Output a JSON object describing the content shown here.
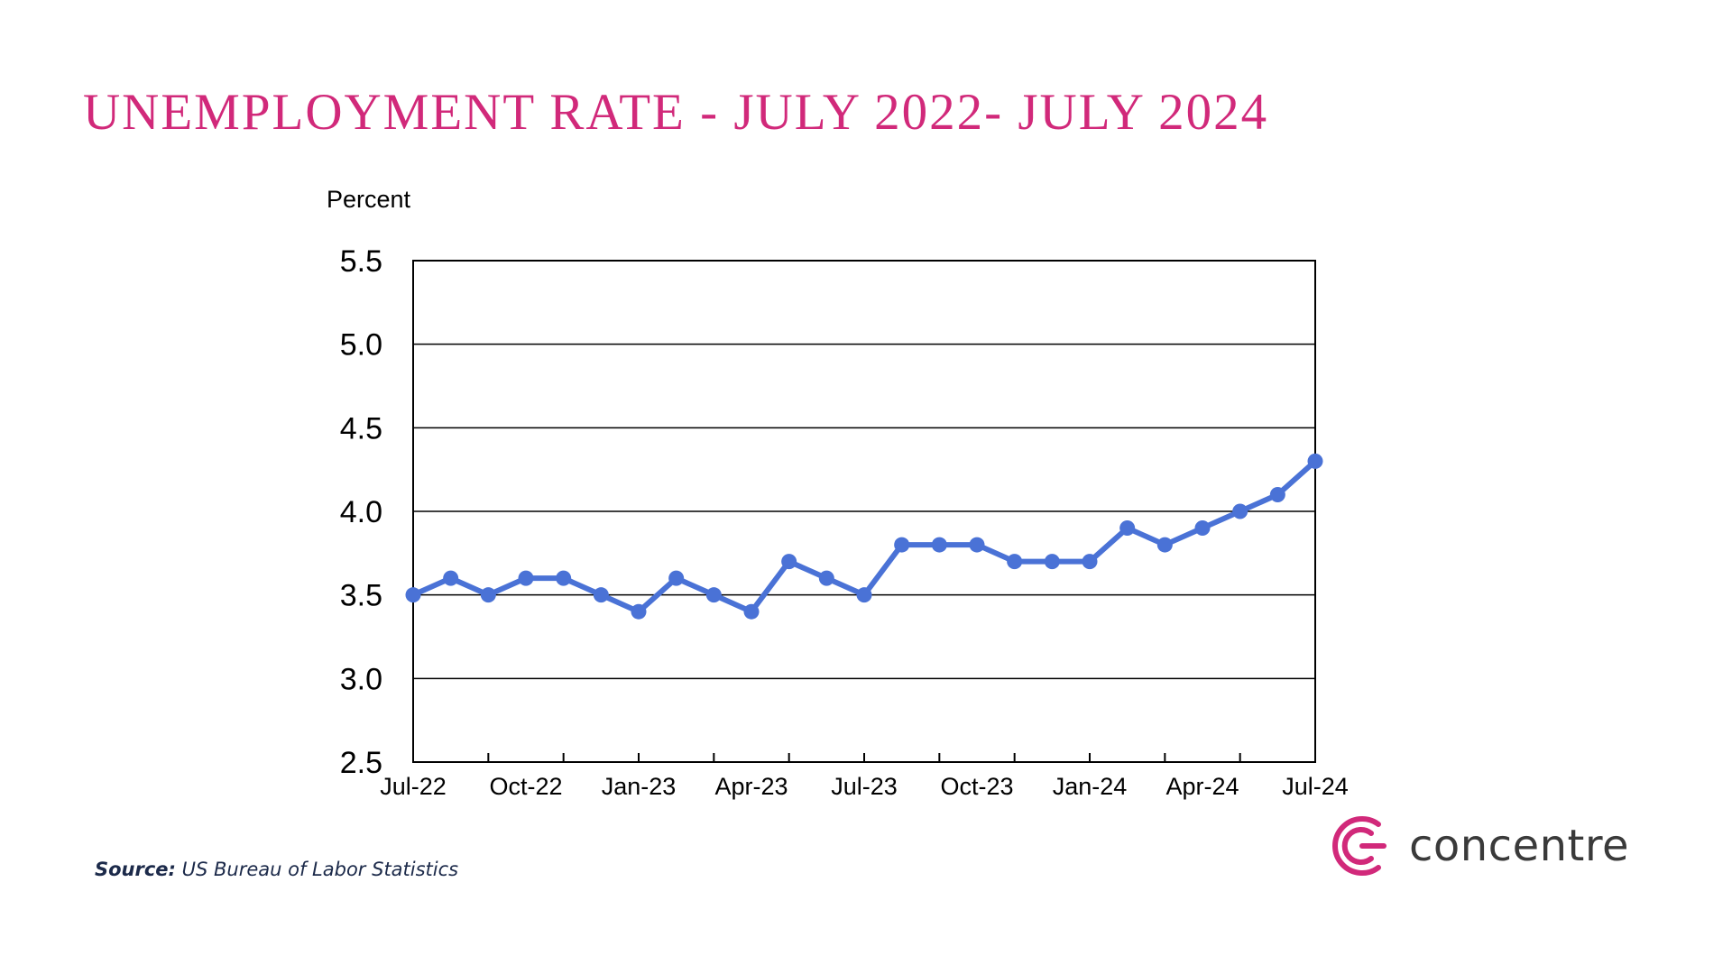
{
  "page": {
    "title": "UNEMPLOYMENT RATE - JULY 2022- JULY 2024",
    "source_label": "Source:",
    "source_text": "US Bureau of Labor Statistics",
    "brand": {
      "name": "concentre",
      "accent_color": "#d1297a",
      "text_color": "#3a3a3a"
    }
  },
  "chart_data": {
    "type": "line",
    "title": "",
    "ylabel": "Percent",
    "xlabel": "",
    "ylim": [
      2.5,
      5.5
    ],
    "yticks": [
      2.5,
      3.0,
      3.5,
      4.0,
      4.5,
      5.0,
      5.5
    ],
    "ytick_labels": [
      "2.5",
      "3.0",
      "3.5",
      "4.0",
      "4.5",
      "5.0",
      "5.5"
    ],
    "grid": "horizontal",
    "line_color": "#4a72d6",
    "x": [
      "Jul-22",
      "Aug-22",
      "Sep-22",
      "Oct-22",
      "Nov-22",
      "Dec-22",
      "Jan-23",
      "Feb-23",
      "Mar-23",
      "Apr-23",
      "May-23",
      "Jun-23",
      "Jul-23",
      "Aug-23",
      "Sep-23",
      "Oct-23",
      "Nov-23",
      "Dec-23",
      "Jan-24",
      "Feb-24",
      "Mar-24",
      "Apr-24",
      "May-24",
      "Jun-24",
      "Jul-24"
    ],
    "x_tick_labels": [
      "Jul-22",
      "Oct-22",
      "Jan-23",
      "Apr-23",
      "Jul-23",
      "Oct-23",
      "Jan-24",
      "Apr-24",
      "Jul-24"
    ],
    "series": [
      {
        "values": [
          3.5,
          3.6,
          3.5,
          3.6,
          3.6,
          3.5,
          3.4,
          3.6,
          3.5,
          3.4,
          3.7,
          3.6,
          3.5,
          3.8,
          3.8,
          3.8,
          3.7,
          3.7,
          3.7,
          3.9,
          3.8,
          3.9,
          4.0,
          4.1,
          4.3
        ]
      }
    ]
  }
}
